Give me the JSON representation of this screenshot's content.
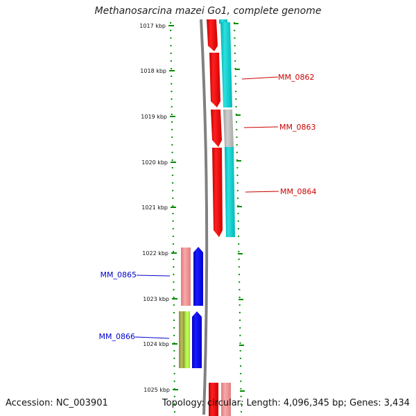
{
  "title": "Methanosarcina mazei Go1, complete genome",
  "footer": {
    "accession": "Accession: NC_003901",
    "topology": "Topology: circular; Length: 4,096,345 bp; Genes: 3,434"
  },
  "ticks": [
    "1017 kbp",
    "1018 kbp",
    "1019 kbp",
    "1020 kbp",
    "1021 kbp",
    "1022 kbp",
    "1023 kbp",
    "1024 kbp",
    "1025 kbp"
  ],
  "genes": [
    {
      "name": "MM_0862",
      "color": "#cc0000"
    },
    {
      "name": "MM_0863",
      "color": "#cc0000"
    },
    {
      "name": "MM_0864",
      "color": "#cc0000"
    },
    {
      "name": "MM_0865",
      "color": "#0000cc"
    },
    {
      "name": "MM_0866",
      "color": "#0000cc"
    }
  ],
  "colors": {
    "forward_cds": "#ff0000",
    "forward_blast": "#00cccc",
    "blast_gray": "#b4b4b4",
    "reverse_cds": "#0000ff",
    "reverse_pink": "#f08c8c",
    "reverse_olive": "#a5a54b",
    "reverse_green": "#aaf03c",
    "backbone": "#808080",
    "tick_green": "#008c00"
  }
}
